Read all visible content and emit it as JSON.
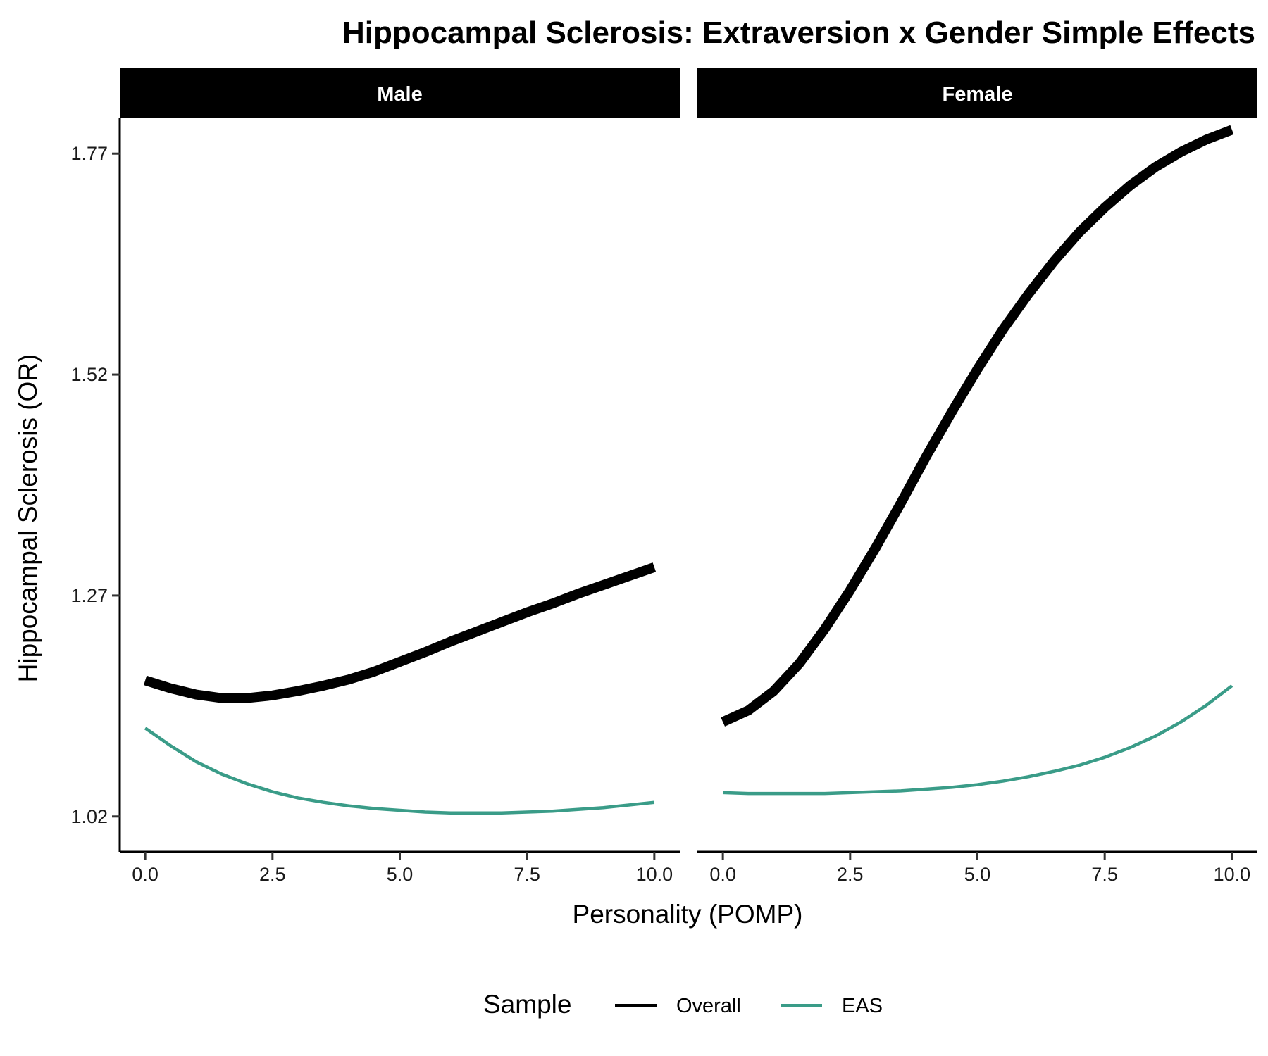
{
  "chart_data": {
    "type": "line",
    "title": "Hippocampal Sclerosis: Extraversion x Gender Simple Effects",
    "xlabel": "Personality (POMP)",
    "ylabel": "Hippocampal Sclerosis (OR)",
    "xlim": [
      -0.5,
      10.5
    ],
    "ylim": [
      0.98,
      1.81
    ],
    "x_ticks": [
      0,
      2.5,
      5,
      7.5,
      10
    ],
    "x_tick_labels": [
      "0.0",
      "2.5",
      "5.0",
      "7.5",
      "10.0"
    ],
    "y_ticks": [
      1.02,
      1.27,
      1.52,
      1.77
    ],
    "y_tick_labels": [
      "1.02",
      "1.27",
      "1.52",
      "1.77"
    ],
    "grid": false,
    "legend": {
      "title": "Sample",
      "position": "bottom",
      "entries": [
        {
          "label": "Overall",
          "color": "#000000"
        },
        {
          "label": "EAS",
          "color": "#3a9c88"
        }
      ]
    },
    "facets": [
      {
        "label": "Male",
        "series": [
          {
            "name": "Overall",
            "color": "#000000",
            "x": [
              0,
              0.5,
              1,
              1.5,
              2,
              2.5,
              3,
              3.5,
              4,
              4.5,
              5,
              5.5,
              6,
              6.5,
              7,
              7.5,
              8,
              8.5,
              9,
              9.5,
              10
            ],
            "y": [
              1.174,
              1.165,
              1.158,
              1.154,
              1.154,
              1.157,
              1.162,
              1.168,
              1.175,
              1.184,
              1.195,
              1.206,
              1.218,
              1.229,
              1.24,
              1.251,
              1.261,
              1.272,
              1.282,
              1.292,
              1.302
            ]
          },
          {
            "name": "EAS",
            "color": "#3a9c88",
            "x": [
              0,
              0.5,
              1,
              1.5,
              2,
              2.5,
              3,
              3.5,
              4,
              4.5,
              5,
              5.5,
              6,
              6.5,
              7,
              7.5,
              8,
              8.5,
              9,
              9.5,
              10
            ],
            "y": [
              1.12,
              1.1,
              1.082,
              1.068,
              1.057,
              1.048,
              1.041,
              1.036,
              1.032,
              1.029,
              1.027,
              1.025,
              1.024,
              1.024,
              1.024,
              1.025,
              1.026,
              1.028,
              1.03,
              1.033,
              1.036
            ]
          }
        ]
      },
      {
        "label": "Female",
        "series": [
          {
            "name": "Overall",
            "color": "#000000",
            "x": [
              0,
              0.5,
              1,
              1.5,
              2,
              2.5,
              3,
              3.5,
              4,
              4.5,
              5,
              5.5,
              6,
              6.5,
              7,
              7.5,
              8,
              8.5,
              9,
              9.5,
              10
            ],
            "y": [
              1.127,
              1.14,
              1.162,
              1.193,
              1.232,
              1.276,
              1.324,
              1.375,
              1.428,
              1.478,
              1.526,
              1.571,
              1.611,
              1.648,
              1.681,
              1.709,
              1.734,
              1.755,
              1.772,
              1.786,
              1.797
            ]
          },
          {
            "name": "EAS",
            "color": "#3a9c88",
            "x": [
              0,
              0.5,
              1,
              1.5,
              2,
              2.5,
              3,
              3.5,
              4,
              4.5,
              5,
              5.5,
              6,
              6.5,
              7,
              7.5,
              8,
              8.5,
              9,
              9.5,
              10
            ],
            "y": [
              1.047,
              1.046,
              1.046,
              1.046,
              1.046,
              1.047,
              1.048,
              1.049,
              1.051,
              1.053,
              1.056,
              1.06,
              1.065,
              1.071,
              1.078,
              1.087,
              1.098,
              1.111,
              1.127,
              1.146,
              1.168
            ]
          }
        ]
      }
    ]
  }
}
